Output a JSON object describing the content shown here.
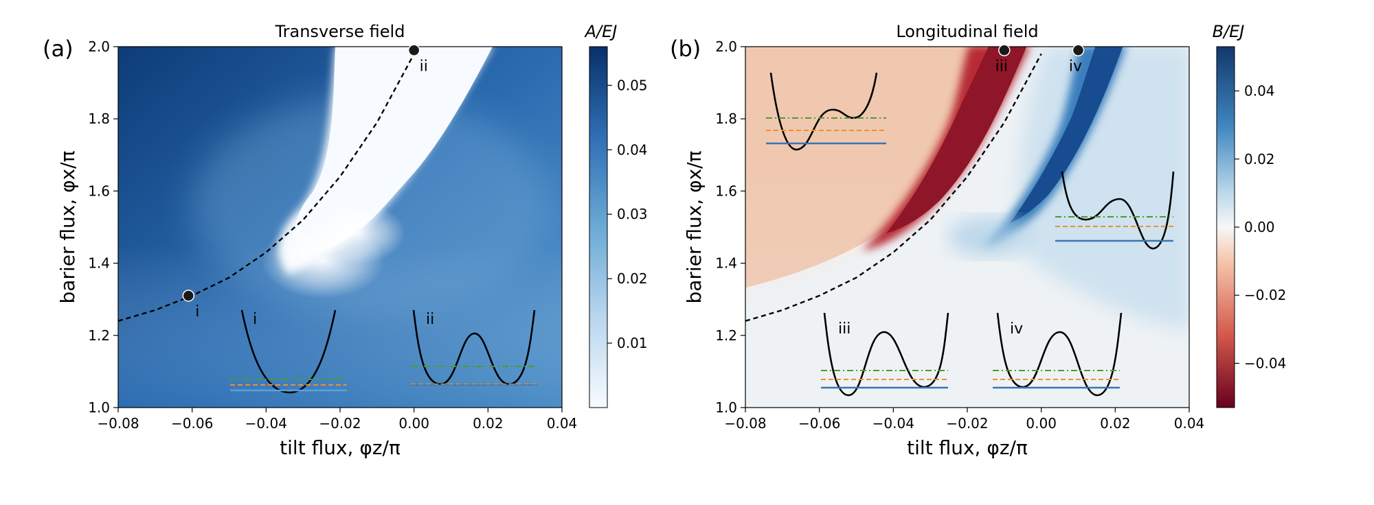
{
  "chart_data": [
    {
      "type": "heatmap",
      "panel_label": "(a)",
      "title": "Transverse field",
      "xlabel": "tilt flux, φz/π",
      "ylabel": "barier flux, φx/π",
      "xlim": [
        -0.08,
        0.04
      ],
      "ylim": [
        1.0,
        2.0
      ],
      "xticks": [
        "−0.08",
        "−0.06",
        "−0.04",
        "−0.02",
        "0.00",
        "0.02",
        "0.04"
      ],
      "yticks": [
        "1.0",
        "1.2",
        "1.4",
        "1.6",
        "1.8",
        "2.0"
      ],
      "colorbar": {
        "label": "A/EJ",
        "range": [
          0.0,
          0.056
        ],
        "ticks": [
          "0.01",
          "0.02",
          "0.03",
          "0.04",
          "0.05"
        ],
        "tick_values": [
          0.01,
          0.02,
          0.03,
          0.04,
          0.05
        ],
        "colormap": "Blues"
      },
      "dashed_curve": {
        "x": [
          -0.08,
          -0.07,
          -0.06,
          -0.05,
          -0.04,
          -0.03,
          -0.02,
          -0.01,
          0.0
        ],
        "y": [
          1.24,
          1.27,
          1.31,
          1.36,
          1.43,
          1.52,
          1.64,
          1.79,
          1.98
        ]
      },
      "markers": [
        {
          "label": "i",
          "x": -0.061,
          "y": 1.31
        },
        {
          "label": "ii",
          "x": 0.0,
          "y": 1.99
        }
      ],
      "insets": [
        {
          "label": "i",
          "shape": "single-well"
        },
        {
          "label": "ii",
          "shape": "symmetric-double-well"
        }
      ]
    },
    {
      "type": "heatmap",
      "panel_label": "(b)",
      "title": "Longitudinal field",
      "xlabel": "tilt flux, φz/π",
      "ylabel": "barier flux, φx/π",
      "xlim": [
        -0.08,
        0.04
      ],
      "ylim": [
        1.0,
        2.0
      ],
      "xticks": [
        "−0.08",
        "−0.06",
        "−0.04",
        "−0.02",
        "0.00",
        "0.02",
        "0.04"
      ],
      "yticks": [
        "1.0",
        "1.2",
        "1.4",
        "1.6",
        "1.8",
        "2.0"
      ],
      "colorbar": {
        "label": "B/EJ",
        "range": [
          -0.053,
          0.053
        ],
        "ticks": [
          "−0.04",
          "−0.02",
          "0.00",
          "0.02",
          "0.04"
        ],
        "tick_values": [
          -0.04,
          -0.02,
          0.0,
          0.02,
          0.04
        ],
        "colormap": "RdBu"
      },
      "dashed_curve": {
        "x": [
          -0.08,
          -0.07,
          -0.06,
          -0.05,
          -0.04,
          -0.03,
          -0.02,
          -0.01,
          0.0
        ],
        "y": [
          1.24,
          1.27,
          1.31,
          1.36,
          1.43,
          1.52,
          1.64,
          1.79,
          1.98
        ]
      },
      "markers": [
        {
          "label": "iii",
          "x": -0.01,
          "y": 1.99
        },
        {
          "label": "iv",
          "x": 0.01,
          "y": 1.99
        }
      ],
      "insets": [
        {
          "label": "",
          "shape": "tilted-left-well"
        },
        {
          "label": "",
          "shape": "tilted-right-well"
        },
        {
          "label": "iii",
          "shape": "double-well"
        },
        {
          "label": "iv",
          "shape": "double-well"
        }
      ]
    }
  ],
  "colors": {
    "level1": "#3a75b0",
    "level2": "#f28e2b",
    "level3": "#4e9a2e"
  }
}
